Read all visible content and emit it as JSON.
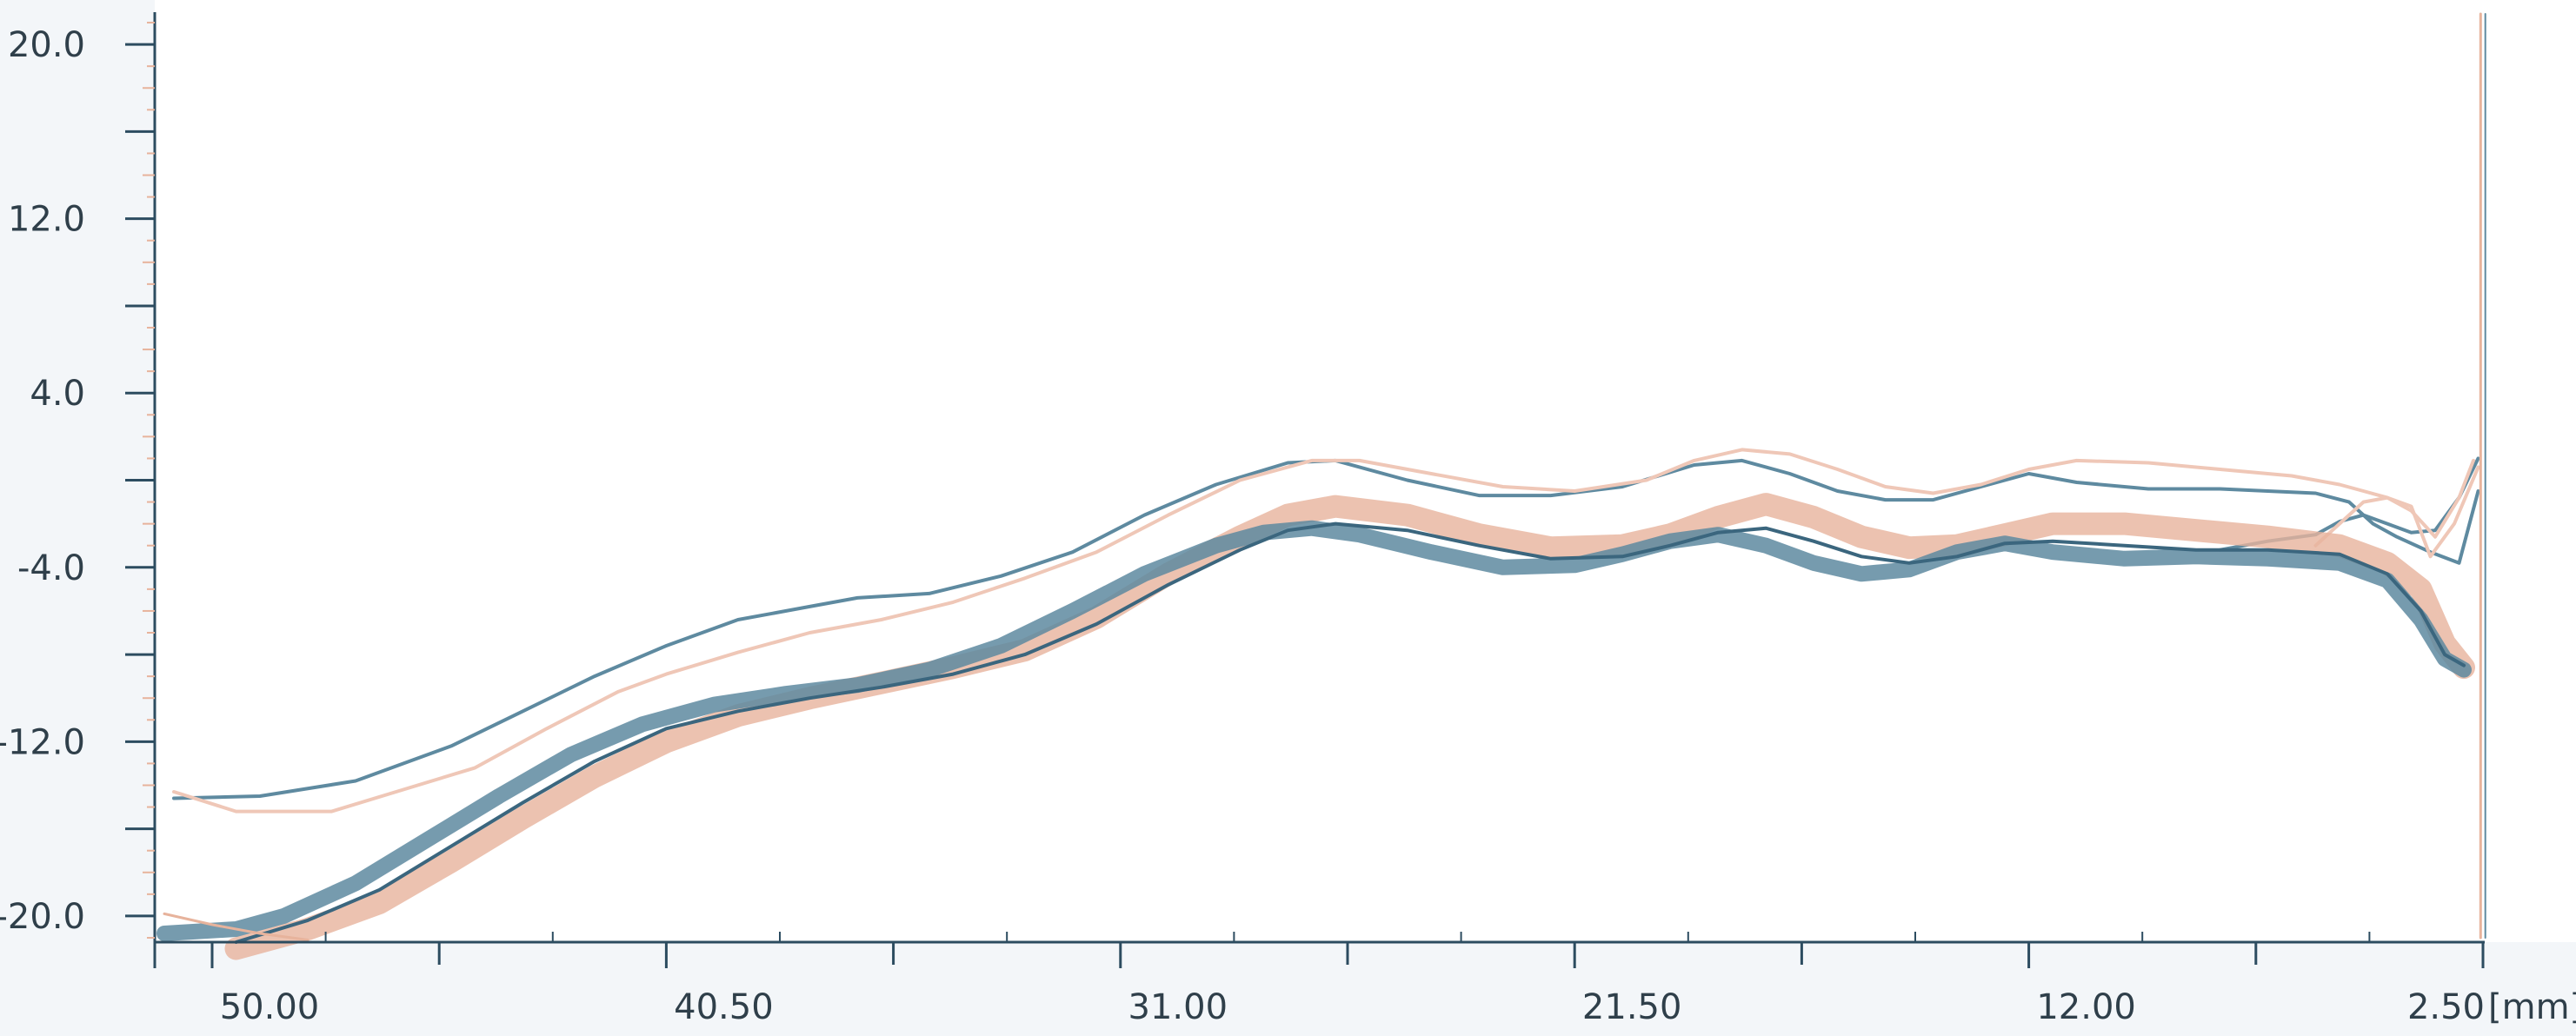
{
  "chart_data": {
    "type": "line",
    "title": "",
    "ylabel": "",
    "xlabel": "",
    "x_unit": "[mm]",
    "x_axis": {
      "ticks": [
        "50.00",
        "40.50",
        "31.00",
        "21.50",
        "12.00",
        "2.50"
      ],
      "range": [
        51.2,
        2.5
      ],
      "reversed": true
    },
    "y_axis": {
      "ticks": [
        "20.0",
        "12.0",
        "4.0",
        "-4.0",
        "-12.0",
        "-20.0"
      ],
      "range": [
        -21.2,
        21.4
      ]
    },
    "grid": false,
    "legend": "none",
    "colors": {
      "blue": "#5e8aa0",
      "blue_dark": "#3b667e",
      "salmon": "#e7b39c",
      "salmon_light": "#efc7b7",
      "axis": "#2c4c60",
      "tick_minor": "#e7b39c",
      "background": "#ffffff",
      "frame": "#f3f6f9"
    },
    "series": [
      {
        "color": "blue",
        "x": [
          50.8,
          49.0,
          47.0,
          45.0,
          43.5,
          42.0,
          40.5,
          39.0,
          37.5,
          36.5,
          35.0,
          33.5,
          32.0,
          30.5,
          29.0,
          27.5,
          26.5,
          25.0,
          23.5,
          22.0,
          20.5,
          19.0,
          18.0,
          17.0,
          16.0,
          15.0,
          14.0,
          13.0,
          12.0,
          11.0,
          9.5,
          8.0,
          7.0,
          6.0,
          5.3,
          4.8,
          4.3,
          3.6,
          3.0,
          2.6
        ],
        "y": [
          -14.6,
          -14.5,
          -13.8,
          -12.2,
          -10.6,
          -9.0,
          -7.6,
          -6.4,
          -5.8,
          -5.4,
          -5.2,
          -4.4,
          -3.3,
          -1.6,
          -0.2,
          0.8,
          0.9,
          0.0,
          -0.7,
          -0.7,
          -0.3,
          0.7,
          0.9,
          0.3,
          -0.5,
          -0.9,
          -0.9,
          -0.3,
          0.3,
          -0.1,
          -0.4,
          -0.4,
          -0.5,
          -0.6,
          -1.0,
          -2.0,
          -2.6,
          -3.3,
          -3.8,
          -0.5
        ]
      },
      {
        "color": "blue",
        "x": [
          8.0,
          7.0,
          6.0,
          5.5,
          5.0,
          4.5,
          4.0,
          3.5,
          3.0,
          2.6
        ],
        "y": [
          -3.2,
          -2.8,
          -2.5,
          -1.9,
          -1.6,
          -2.0,
          -2.4,
          -2.3,
          -0.8,
          1.0
        ]
      },
      {
        "color": "salmon_light",
        "x": [
          50.8,
          49.5,
          47.5,
          46.0,
          44.5,
          43.0,
          41.5,
          40.5,
          39.0,
          37.5,
          36.0,
          34.5,
          33.0,
          31.5,
          30.0,
          28.5,
          27.0,
          26.0,
          24.5,
          23.0,
          21.5,
          20.0,
          19.0,
          18.0,
          17.0,
          16.0,
          15.0,
          14.0,
          13.0,
          12.0,
          11.0,
          9.5,
          8.0,
          6.5,
          5.5,
          5.0,
          4.5,
          4.0,
          3.6,
          3.1,
          2.6
        ],
        "y": [
          -14.3,
          -15.2,
          -15.2,
          -14.2,
          -13.2,
          -11.4,
          -9.7,
          -8.9,
          -7.9,
          -7.0,
          -6.4,
          -5.6,
          -4.5,
          -3.3,
          -1.6,
          0.0,
          0.9,
          0.9,
          0.3,
          -0.3,
          -0.5,
          0.0,
          0.9,
          1.4,
          1.2,
          0.5,
          -0.3,
          -0.6,
          -0.2,
          0.5,
          0.9,
          0.8,
          0.5,
          0.2,
          -0.2,
          -0.5,
          -0.8,
          -1.2,
          -3.5,
          -2.0,
          0.6
        ]
      },
      {
        "color": "salmon_light",
        "x": [
          6.0,
          5.5,
          5.0,
          4.5,
          4.0,
          3.5,
          3.0,
          2.7
        ],
        "y": [
          -3.0,
          -2.0,
          -1.0,
          -0.8,
          -1.4,
          -2.6,
          -0.8,
          0.9
        ]
      },
      {
        "color": "salmon",
        "width": 26,
        "opacity": 0.8,
        "x": [
          49.5,
          48.0,
          46.5,
          45.0,
          43.5,
          42.0,
          40.5,
          39.0,
          37.5,
          36.0,
          34.5,
          33.0,
          31.5,
          30.0,
          28.5,
          27.5,
          26.5,
          25.0,
          23.5,
          22.0,
          20.5,
          19.5,
          18.5,
          17.5,
          16.5,
          15.5,
          14.5,
          13.5,
          12.5,
          11.5,
          10.0,
          8.5,
          7.0,
          5.5,
          4.5,
          3.8,
          3.3,
          2.9
        ],
        "y": [
          -21.5,
          -20.6,
          -19.4,
          -17.5,
          -15.5,
          -13.6,
          -12.0,
          -10.8,
          -10.0,
          -9.3,
          -8.6,
          -7.8,
          -6.3,
          -4.3,
          -2.6,
          -1.6,
          -1.2,
          -1.6,
          -2.5,
          -3.1,
          -3.0,
          -2.5,
          -1.7,
          -1.1,
          -1.7,
          -2.6,
          -3.1,
          -3.0,
          -2.5,
          -2.0,
          -2.0,
          -2.3,
          -2.6,
          -3.0,
          -3.8,
          -5.0,
          -7.5,
          -8.6
        ]
      },
      {
        "color": "blue",
        "width": 18,
        "opacity": 0.85,
        "x": [
          51.0,
          49.5,
          48.5,
          47.0,
          45.5,
          44.0,
          42.5,
          41.0,
          39.5,
          38.0,
          36.5,
          35.0,
          33.5,
          32.0,
          30.5,
          29.0,
          28.0,
          27.0,
          26.0,
          24.5,
          23.0,
          21.5,
          20.5,
          19.5,
          18.5,
          17.5,
          16.5,
          15.5,
          14.5,
          13.5,
          12.5,
          11.5,
          10.0,
          8.5,
          7.0,
          5.5,
          4.5,
          3.8,
          3.3,
          2.9
        ],
        "y": [
          -20.8,
          -20.6,
          -20.0,
          -18.5,
          -16.5,
          -14.5,
          -12.6,
          -11.2,
          -10.3,
          -9.8,
          -9.4,
          -8.7,
          -7.6,
          -6.0,
          -4.3,
          -3.0,
          -2.4,
          -2.2,
          -2.5,
          -3.3,
          -4.0,
          -3.9,
          -3.4,
          -2.8,
          -2.5,
          -3.0,
          -3.8,
          -4.3,
          -4.1,
          -3.3,
          -2.9,
          -3.3,
          -3.6,
          -3.5,
          -3.6,
          -3.8,
          -4.6,
          -6.4,
          -8.2,
          -8.7
        ]
      },
      {
        "color": "blue_dark",
        "width": 4,
        "x": [
          49.5,
          48.0,
          46.5,
          45.0,
          43.5,
          42.0,
          40.5,
          39.0,
          37.5,
          36.0,
          34.5,
          33.0,
          31.5,
          30.0,
          28.5,
          27.5,
          26.5,
          25.0,
          23.5,
          22.0,
          20.5,
          19.5,
          18.5,
          17.5,
          16.5,
          15.5,
          14.5,
          13.5,
          12.5,
          11.5,
          10.0,
          8.5,
          7.0,
          5.5,
          4.5,
          3.8,
          3.3,
          2.9
        ],
        "y": [
          -21.2,
          -20.2,
          -18.8,
          -16.8,
          -14.8,
          -12.9,
          -11.4,
          -10.6,
          -10.0,
          -9.5,
          -8.9,
          -8.0,
          -6.6,
          -4.8,
          -3.2,
          -2.3,
          -2.0,
          -2.3,
          -3.0,
          -3.6,
          -3.5,
          -3.0,
          -2.4,
          -2.2,
          -2.8,
          -3.5,
          -3.8,
          -3.5,
          -2.9,
          -2.8,
          -3.0,
          -3.2,
          -3.2,
          -3.4,
          -4.3,
          -6.0,
          -8.0,
          -8.5
        ]
      },
      {
        "color": "salmon",
        "width": 3,
        "x": [
          51.0,
          50.0,
          49.0,
          48.0
        ],
        "y": [
          -19.9,
          -20.4,
          -20.8,
          -21.1
        ]
      },
      {
        "color": "salmon",
        "width": 3,
        "x": [
          2.55,
          2.55
        ],
        "y": [
          -21.0,
          21.4
        ]
      },
      {
        "color": "blue",
        "width": 2,
        "x": [
          2.45,
          2.45
        ],
        "y": [
          -21.0,
          21.4
        ]
      }
    ]
  }
}
